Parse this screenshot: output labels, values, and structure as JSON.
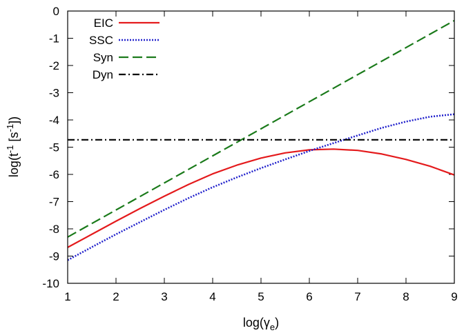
{
  "chart_data": {
    "type": "line",
    "title": "",
    "xlabel": "log(γe)",
    "xlabel_base": "log(γ",
    "xlabel_sub": "e",
    "xlabel_close": ")",
    "ylabel": "log(t-1 [s-1])",
    "ylabel_parts": {
      "p1": "log(t",
      "sup1": "-1",
      "p2": " [s",
      "sup2": "-1",
      "p3": "])"
    },
    "xlim": [
      1,
      9
    ],
    "ylim": [
      -10,
      0
    ],
    "xticks": [
      1,
      2,
      3,
      4,
      5,
      6,
      7,
      8,
      9
    ],
    "yticks": [
      -10,
      -9,
      -8,
      -7,
      -6,
      -5,
      -4,
      -3,
      -2,
      -1,
      0
    ],
    "legend_position": "top-left",
    "series": [
      {
        "name": "EIC",
        "color": "#e41a1c",
        "style": "solid",
        "x": [
          1,
          1.5,
          2,
          2.5,
          3,
          3.5,
          4,
          4.5,
          5,
          5.5,
          6,
          6.5,
          7,
          7.5,
          8,
          8.5,
          9
        ],
        "y": [
          -8.68,
          -8.2,
          -7.72,
          -7.25,
          -6.8,
          -6.37,
          -5.98,
          -5.66,
          -5.4,
          -5.21,
          -5.1,
          -5.07,
          -5.12,
          -5.25,
          -5.45,
          -5.7,
          -6.02
        ]
      },
      {
        "name": "SSC",
        "color": "#2222cc",
        "style": "dotted",
        "x": [
          1,
          1.5,
          2,
          2.5,
          3,
          3.5,
          4,
          4.5,
          5,
          5.5,
          6,
          6.5,
          7,
          7.5,
          8,
          8.5,
          9
        ],
        "y": [
          -9.15,
          -8.67,
          -8.2,
          -7.75,
          -7.3,
          -6.87,
          -6.47,
          -6.11,
          -5.77,
          -5.45,
          -5.14,
          -4.85,
          -4.57,
          -4.29,
          -4.06,
          -3.88,
          -3.79
        ]
      },
      {
        "name": "Syn",
        "color": "#1a7a1a",
        "style": "dashed",
        "x": [
          1,
          9
        ],
        "y": [
          -8.3,
          -0.35
        ]
      },
      {
        "name": "Dyn",
        "color": "#000000",
        "style": "dashdot",
        "x": [
          1,
          9
        ],
        "y": [
          -4.73,
          -4.73
        ]
      }
    ]
  }
}
